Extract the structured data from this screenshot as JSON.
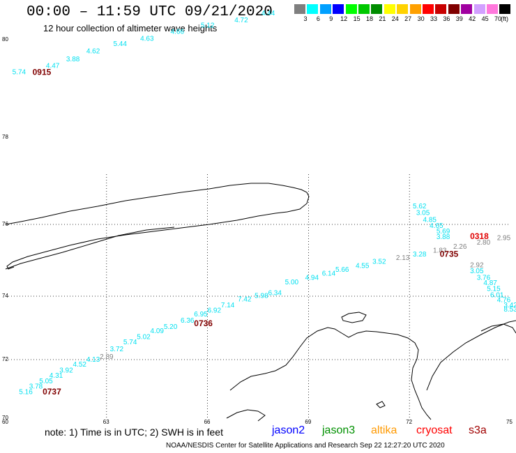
{
  "header": {
    "title": "00:00 – 11:59 UTC 09/21/2020",
    "subtitle": "12 hour collection of altimeter wave heights"
  },
  "scale": {
    "unit": "(ft)",
    "bins": [
      {
        "label": "3",
        "color": "#7f7f7f"
      },
      {
        "label": "6",
        "color": "#00ffff"
      },
      {
        "label": "9",
        "color": "#00a0ff"
      },
      {
        "label": "12",
        "color": "#0000ff"
      },
      {
        "label": "15",
        "color": "#00ff00"
      },
      {
        "label": "18",
        "color": "#00c800"
      },
      {
        "label": "21",
        "color": "#008c00"
      },
      {
        "label": "24",
        "color": "#ffff00"
      },
      {
        "label": "27",
        "color": "#ffd200"
      },
      {
        "label": "30",
        "color": "#ffa000"
      },
      {
        "label": "33",
        "color": "#ff0000"
      },
      {
        "label": "36",
        "color": "#c80000"
      },
      {
        "label": "39",
        "color": "#800000"
      },
      {
        "label": "42",
        "color": "#a000a0"
      },
      {
        "label": "45",
        "color": "#d2a0ff"
      },
      {
        "label": "70",
        "color": "#ff78dc"
      },
      {
        "label": "",
        "color": "#000000"
      }
    ]
  },
  "axes": {
    "lat_labels": [
      "80",
      "78",
      "76",
      "74",
      "72",
      "70"
    ],
    "lon_labels": [
      "60",
      "63",
      "66",
      "69",
      "72",
      "75"
    ]
  },
  "observations": [
    {
      "text": "5.74",
      "lon": 60.2,
      "lat": 79.29,
      "color": "#00e0f0"
    },
    {
      "text": "4.47",
      "lon": 61.2,
      "lat": 79.42,
      "color": "#00e0f0"
    },
    {
      "text": "3.88",
      "lon": 61.8,
      "lat": 79.56,
      "color": "#00e0f0"
    },
    {
      "text": "4.62",
      "lon": 62.4,
      "lat": 79.72,
      "color": "#00e0f0"
    },
    {
      "text": "5.44",
      "lon": 63.2,
      "lat": 79.87,
      "color": "#00e0f0"
    },
    {
      "text": "4.63",
      "lon": 64.0,
      "lat": 79.98,
      "color": "#00e0f0"
    },
    {
      "text": "4.66",
      "lon": 64.9,
      "lat": 80.12,
      "color": "#00e0f0"
    },
    {
      "text": "5.12",
      "lon": 65.8,
      "lat": 80.25,
      "color": "#00e0f0"
    },
    {
      "text": "4.72",
      "lon": 66.8,
      "lat": 80.36,
      "color": "#00e0f0"
    },
    {
      "text": "4.44",
      "lon": 67.6,
      "lat": 80.5,
      "color": "#00e0f0"
    },
    {
      "text": "5.62",
      "lon": 72.1,
      "lat": 76.37,
      "color": "#00e0f0"
    },
    {
      "text": "3.05",
      "lon": 72.2,
      "lat": 76.22,
      "color": "#00e0f0"
    },
    {
      "text": "4.85",
      "lon": 72.4,
      "lat": 76.06,
      "color": "#00e0f0"
    },
    {
      "text": "4.65",
      "lon": 72.6,
      "lat": 75.9,
      "color": "#00e0f0"
    },
    {
      "text": "5.69",
      "lon": 72.8,
      "lat": 75.75,
      "color": "#00e0f0"
    },
    {
      "text": "3.88",
      "lon": 72.8,
      "lat": 75.59,
      "color": "#00e0f0"
    },
    {
      "text": "2.95",
      "lon": 74.6,
      "lat": 75.56,
      "color": "#7f7f7f"
    },
    {
      "text": "2.80",
      "lon": 74.0,
      "lat": 75.44,
      "color": "#7f7f7f"
    },
    {
      "text": "2.26",
      "lon": 73.3,
      "lat": 75.32,
      "color": "#7f7f7f"
    },
    {
      "text": "1.83",
      "lon": 72.7,
      "lat": 75.21,
      "color": "#7f7f7f"
    },
    {
      "text": "3.28",
      "lon": 72.1,
      "lat": 75.11,
      "color": "#00e0f0"
    },
    {
      "text": "2.13",
      "lon": 71.6,
      "lat": 75.01,
      "color": "#7f7f7f"
    },
    {
      "text": "3.52",
      "lon": 70.9,
      "lat": 74.9,
      "color": "#00e0f0"
    },
    {
      "text": "4.55",
      "lon": 70.4,
      "lat": 74.79,
      "color": "#00e0f0"
    },
    {
      "text": "5.66",
      "lon": 69.8,
      "lat": 74.68,
      "color": "#00e0f0"
    },
    {
      "text": "6.14",
      "lon": 69.4,
      "lat": 74.57,
      "color": "#00e0f0"
    },
    {
      "text": "4.94",
      "lon": 68.9,
      "lat": 74.46,
      "color": "#00e0f0"
    },
    {
      "text": "5.00",
      "lon": 68.3,
      "lat": 74.33,
      "color": "#00e0f0"
    },
    {
      "text": "6.34",
      "lon": 67.8,
      "lat": 74.03,
      "color": "#00e0f0"
    },
    {
      "text": "5.98",
      "lon": 67.4,
      "lat": 73.94,
      "color": "#00e0f0"
    },
    {
      "text": "7.42",
      "lon": 66.9,
      "lat": 73.83,
      "color": "#00e0f0"
    },
    {
      "text": "7.14",
      "lon": 66.4,
      "lat": 73.65,
      "color": "#00e0f0"
    },
    {
      "text": "6.92",
      "lon": 66.0,
      "lat": 73.48,
      "color": "#00e0f0"
    },
    {
      "text": "6.95",
      "lon": 65.6,
      "lat": 73.36,
      "color": "#00e0f0"
    },
    {
      "text": "6.36",
      "lon": 65.2,
      "lat": 73.16,
      "color": "#00e0f0"
    },
    {
      "text": "5.20",
      "lon": 64.7,
      "lat": 72.97,
      "color": "#00e0f0"
    },
    {
      "text": "4.09",
      "lon": 64.3,
      "lat": 72.84,
      "color": "#00e0f0"
    },
    {
      "text": "5.02",
      "lon": 63.9,
      "lat": 72.65,
      "color": "#00e0f0"
    },
    {
      "text": "5.74",
      "lon": 63.5,
      "lat": 72.48,
      "color": "#00e0f0"
    },
    {
      "text": "3.72",
      "lon": 63.1,
      "lat": 72.26,
      "color": "#00e0f0"
    },
    {
      "text": "2.89",
      "lon": 62.8,
      "lat": 72.02,
      "color": "#7f7f7f"
    },
    {
      "text": "4.13",
      "lon": 62.4,
      "lat": 71.93,
      "color": "#00e0f0"
    },
    {
      "text": "4.52",
      "lon": 62.0,
      "lat": 71.76,
      "color": "#00e0f0"
    },
    {
      "text": "3.92",
      "lon": 61.6,
      "lat": 71.56,
      "color": "#00e0f0"
    },
    {
      "text": "4.31",
      "lon": 61.3,
      "lat": 71.38,
      "color": "#00e0f0"
    },
    {
      "text": "5.05",
      "lon": 61.0,
      "lat": 71.19,
      "color": "#00e0f0"
    },
    {
      "text": "3.78",
      "lon": 60.7,
      "lat": 71.01,
      "color": "#00e0f0"
    },
    {
      "text": "5.16",
      "lon": 60.4,
      "lat": 70.82,
      "color": "#00e0f0"
    },
    {
      "text": "2.92",
      "lon": 73.8,
      "lat": 74.81,
      "color": "#7f7f7f"
    },
    {
      "text": "3.05",
      "lon": 73.8,
      "lat": 74.64,
      "color": "#00e0f0"
    },
    {
      "text": "3.76",
      "lon": 74.0,
      "lat": 74.46,
      "color": "#00e0f0"
    },
    {
      "text": "4.87",
      "lon": 74.2,
      "lat": 74.31,
      "color": "#00e0f0"
    },
    {
      "text": "5.15",
      "lon": 74.3,
      "lat": 74.15,
      "color": "#00e0f0"
    },
    {
      "text": "6.01",
      "lon": 74.4,
      "lat": 73.97,
      "color": "#00e0f0"
    },
    {
      "text": "4.76",
      "lon": 74.6,
      "lat": 73.81,
      "color": "#00e0f0"
    },
    {
      "text": "3.42",
      "lon": 74.8,
      "lat": 73.65,
      "color": "#00e0f0"
    },
    {
      "text": "8.53",
      "lon": 74.8,
      "lat": 73.52,
      "color": "#00e0f0"
    },
    {
      "text": "6",
      "lon": 76.1,
      "lat": 72.43,
      "color": "#00e0f0"
    }
  ],
  "times": [
    {
      "text": "0915",
      "lon": 60.8,
      "lat": 79.28,
      "color": "#800000"
    },
    {
      "text": "0318",
      "lon": 73.8,
      "lat": 75.59,
      "color": "#e00000"
    },
    {
      "text": "0735",
      "lon": 72.9,
      "lat": 75.1,
      "color": "#800000"
    },
    {
      "text": "0736",
      "lon": 65.6,
      "lat": 73.05,
      "color": "#800000"
    },
    {
      "text": "0737",
      "lon": 61.1,
      "lat": 70.81,
      "color": "#800000"
    }
  ],
  "footer": {
    "note": "note:  1) Time is in UTC;  2) SWH is in feet",
    "legend": [
      {
        "label": "jason2",
        "color": "#0000ff"
      },
      {
        "label": "jason3",
        "color": "#009000"
      },
      {
        "label": "altika",
        "color": "#ff9900"
      },
      {
        "label": "cryosat",
        "color": "#ff0000"
      },
      {
        "label": "s3a",
        "color": "#a00000"
      }
    ],
    "credit": "NOAA/NESDIS Center for Satellite Applications and Research     Sep 22 12:27:20 UTC 2020"
  }
}
